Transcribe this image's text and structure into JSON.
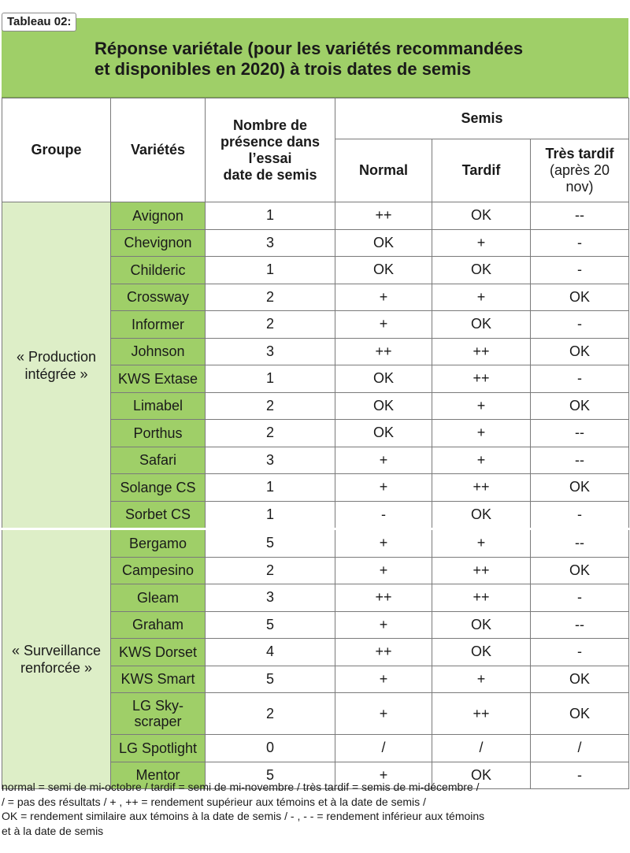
{
  "tag": "Tableau 02:",
  "title_line1": "Réponse variétale (pour les variétés recommandées",
  "title_line2": "et disponibles en 2020) à trois dates de semis",
  "headers": {
    "groupe": "Groupe",
    "varietes": "Variétés",
    "nombre_line1": "Nombre de",
    "nombre_line2": "présence dans",
    "nombre_line3": "l’essai",
    "nombre_line4": "date de semis",
    "semis": "Semis",
    "normal": "Normal",
    "tardif": "Tardif",
    "tres_tardif_line1": "Très tardif",
    "tres_tardif_line2": "(après 20",
    "tres_tardif_line3": "nov)"
  },
  "groups": [
    {
      "label_line1": "« Production",
      "label_line2": "intégrée »",
      "rows": [
        {
          "variety": "Avignon",
          "count": "1",
          "normal": "++",
          "tardif": "OK",
          "tres_tardif": "--"
        },
        {
          "variety": "Chevignon",
          "count": "3",
          "normal": "OK",
          "tardif": "+",
          "tres_tardif": "-"
        },
        {
          "variety": "Childeric",
          "count": "1",
          "normal": "OK",
          "tardif": "OK",
          "tres_tardif": "-"
        },
        {
          "variety": "Crossway",
          "count": "2",
          "normal": "+",
          "tardif": "+",
          "tres_tardif": "OK"
        },
        {
          "variety": "Informer",
          "count": "2",
          "normal": "+",
          "tardif": "OK",
          "tres_tardif": "-"
        },
        {
          "variety": "Johnson",
          "count": "3",
          "normal": "++",
          "tardif": "++",
          "tres_tardif": "OK"
        },
        {
          "variety": "KWS Extase",
          "count": "1",
          "normal": "OK",
          "tardif": "++",
          "tres_tardif": "-"
        },
        {
          "variety": "Limabel",
          "count": "2",
          "normal": "OK",
          "tardif": "+",
          "tres_tardif": "OK"
        },
        {
          "variety": "Porthus",
          "count": "2",
          "normal": "OK",
          "tardif": "+",
          "tres_tardif": "--"
        },
        {
          "variety": "Safari",
          "count": "3",
          "normal": "+",
          "tardif": "+",
          "tres_tardif": "--"
        },
        {
          "variety": "Solange CS",
          "count": "1",
          "normal": "+",
          "tardif": "++",
          "tres_tardif": "OK"
        },
        {
          "variety": "Sorbet CS",
          "count": "1",
          "normal": "-",
          "tardif": "OK",
          "tres_tardif": "-"
        }
      ]
    },
    {
      "label_line1": "« Surveillance",
      "label_line2": "renforcée »",
      "rows": [
        {
          "variety": "Bergamo",
          "count": "5",
          "normal": "+",
          "tardif": "+",
          "tres_tardif": "--"
        },
        {
          "variety": "Campesino",
          "count": "2",
          "normal": "+",
          "tardif": "++",
          "tres_tardif": "OK"
        },
        {
          "variety": "Gleam",
          "count": "3",
          "normal": "++",
          "tardif": "++",
          "tres_tardif": "-"
        },
        {
          "variety": "Graham",
          "count": "5",
          "normal": "+",
          "tardif": "OK",
          "tres_tardif": "--"
        },
        {
          "variety": "KWS Dorset",
          "count": "4",
          "normal": "++",
          "tardif": "OK",
          "tres_tardif": "-"
        },
        {
          "variety": "KWS Smart",
          "count": "5",
          "normal": "+",
          "tardif": "+",
          "tres_tardif": "OK"
        },
        {
          "variety": "LG Sky-\nscraper",
          "variety_line1": "LG Sky-",
          "variety_line2": "scraper",
          "count": "2",
          "normal": "+",
          "tardif": "++",
          "tres_tardif": "OK"
        },
        {
          "variety": "LG Spotlight",
          "count": "0",
          "normal": "/",
          "tardif": "/",
          "tres_tardif": "/"
        },
        {
          "variety": "Mentor",
          "count": "5",
          "normal": "+",
          "tardif": "OK",
          "tres_tardif": "-"
        }
      ]
    }
  ],
  "legend": [
    "normal = semi de mi-octobre / tardif = semi de mi-novembre / très tardif = semis de mi-décembre /",
    "/ = pas des résultats / + , ++ = rendement supérieur aux témoins et à la date de semis /",
    "OK = rendement similaire aux témoins à la date de semis / - , - - = rendement inférieur aux témoins",
    "et à la date de semis"
  ]
}
